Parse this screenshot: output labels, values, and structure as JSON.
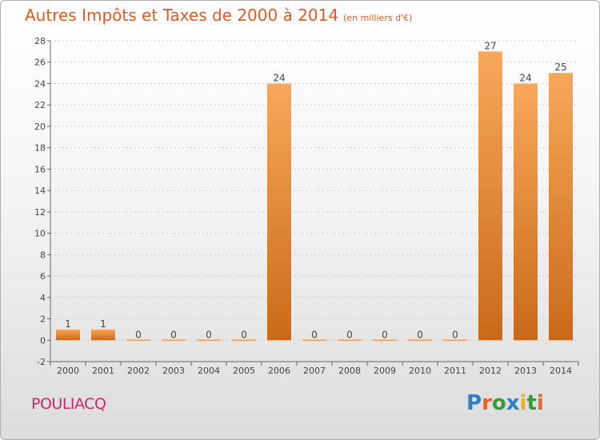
{
  "title": "Autres Impôts et Taxes de 2000 à 2014",
  "subtitle": "(en milliers d'€)",
  "place": "POULIACQ",
  "logo": {
    "text": "Proxiti",
    "letters": [
      {
        "ch": "P",
        "color": "#2f7fc4"
      },
      {
        "ch": "r",
        "color": "#e8632a"
      },
      {
        "ch": "o",
        "color": "#3a9a3a"
      },
      {
        "ch": "x",
        "color": "#2f7fc4"
      },
      {
        "ch": "i",
        "color": "#e8b02a"
      },
      {
        "ch": "t",
        "color": "#3a9a3a"
      },
      {
        "ch": "i",
        "color": "#e8632a"
      }
    ]
  },
  "colors": {
    "bar_top": "#f8a85a",
    "bar_bottom": "#c96a18",
    "grid": "#cccccc",
    "axis": "#666666",
    "text": "#444444"
  },
  "chart_data": {
    "type": "bar",
    "categories": [
      "2000",
      "2001",
      "2002",
      "2003",
      "2004",
      "2005",
      "2006",
      "2007",
      "2008",
      "2009",
      "2010",
      "2011",
      "2012",
      "2013",
      "2014"
    ],
    "values": [
      1,
      1,
      0,
      0,
      0,
      0,
      24,
      0,
      0,
      0,
      0,
      0,
      27,
      24,
      25
    ],
    "data_labels": [
      "1",
      "1",
      "0",
      "0",
      "0",
      "0",
      "24",
      "0",
      "0",
      "0",
      "0",
      "0",
      "27",
      "24",
      "25"
    ],
    "ylim": [
      -2,
      28
    ],
    "yticks": [
      -2,
      0,
      2,
      4,
      6,
      8,
      10,
      12,
      14,
      16,
      18,
      20,
      22,
      24,
      26,
      28
    ],
    "grid": true
  }
}
